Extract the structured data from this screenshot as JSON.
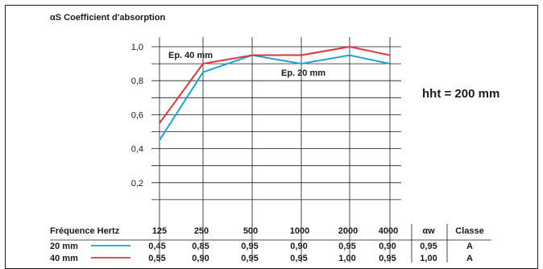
{
  "chart_data": {
    "type": "line",
    "title": "αS Coefficient d'absorption",
    "annotation": "hht = 200 mm",
    "x": [
      125,
      250,
      500,
      1000,
      2000,
      4000
    ],
    "x_tick_labels": [
      "125",
      "250",
      "500",
      "1000",
      "2000",
      "4000"
    ],
    "xlabel": "Fréquence Hertz",
    "ylim": [
      0,
      1.0
    ],
    "y_tick_labels": [
      "1,0",
      "0,8",
      "0,6",
      "0,4",
      "0,2"
    ],
    "y_ticks": [
      1.0,
      0.8,
      0.6,
      0.4,
      0.2
    ],
    "grid": true,
    "series": [
      {
        "name": "20 mm",
        "label": "Ep. 20 mm",
        "color": "#1aa3d9",
        "values": [
          0.45,
          0.85,
          0.95,
          0.9,
          0.95,
          0.9
        ],
        "value_labels": [
          "0,45",
          "0,85",
          "0,95",
          "0,90",
          "0,95",
          "0,90"
        ],
        "alpha_w": "0,95",
        "classe": "A"
      },
      {
        "name": "40 mm",
        "label": "Ep. 40 mm",
        "color": "#d9363e",
        "values": [
          0.55,
          0.9,
          0.95,
          0.95,
          1.0,
          0.95
        ],
        "value_labels": [
          "0,55",
          "0,90",
          "0,95",
          "0,95",
          "1,00",
          "0,95"
        ],
        "alpha_w": "1,00",
        "classe": "A"
      }
    ],
    "table_headers": {
      "alpha_w": "αw",
      "classe": "Classe"
    }
  }
}
